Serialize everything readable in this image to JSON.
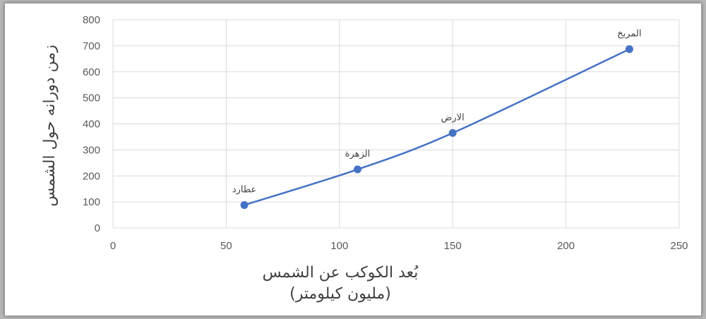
{
  "chart_data": {
    "type": "scatter",
    "xlabel_line1": "بُعد الكوكب عن الشمس",
    "xlabel_line2": "(مليون كيلومتر)",
    "ylabel": "زمن دورانه حول الشمس",
    "xlim": [
      0,
      250
    ],
    "ylim": [
      0,
      800
    ],
    "x_ticks": [
      0,
      50,
      100,
      150,
      200,
      250
    ],
    "y_ticks": [
      0,
      100,
      200,
      300,
      400,
      500,
      600,
      700,
      800
    ],
    "grid": true,
    "line_smoothed": true,
    "series": [
      {
        "color": "#4472c4",
        "points": [
          {
            "label": "عطارد",
            "x": 58,
            "y": 88
          },
          {
            "label": "الزهرة",
            "x": 108,
            "y": 225
          },
          {
            "label": "الارض",
            "x": 150,
            "y": 365
          },
          {
            "label": "المريخ",
            "x": 228,
            "y": 687
          }
        ]
      }
    ]
  },
  "colors": {
    "series": "#4472c4",
    "grid": "#d9d9d9",
    "text": "#595959"
  }
}
